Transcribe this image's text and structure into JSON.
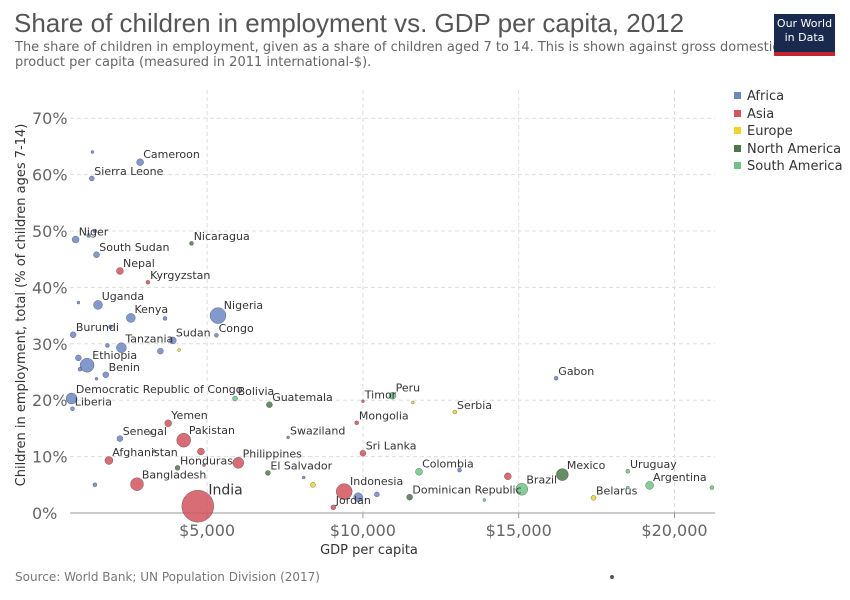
{
  "header": {
    "title": "Share of children in employment vs. GDP per capita, 2012",
    "subtitle": "The share of children in employment, given as a share of children aged 7 to 14. This is shown against gross domestic product per capita (measured in 2011 international-$).",
    "logo_line1": "Our World",
    "logo_line2": "in Data"
  },
  "footer": {
    "source": "Source: World Bank; UN Population Division (2017)"
  },
  "colors": {
    "Africa": "#6d87c5",
    "Asia": "#d1545e",
    "Europe": "#f0d330",
    "North America": "#4a7a4a",
    "South America": "#6dc486"
  },
  "chart_data": {
    "type": "scatter",
    "title": "Share of children in employment vs. GDP per capita, 2012",
    "xlabel": "GDP per capita",
    "ylabel": "Children in employment, total (% of children ages 7-14)",
    "xlim": [
      600,
      21300
    ],
    "ylim": [
      0,
      75
    ],
    "xticks": [
      5000,
      10000,
      15000,
      20000
    ],
    "xtick_labels": [
      "$5,000",
      "$10,000",
      "$15,000",
      "$20,000"
    ],
    "yticks": [
      0,
      10,
      20,
      30,
      40,
      50,
      60,
      70
    ],
    "ytick_labels": [
      "0%",
      "10%",
      "20%",
      "30%",
      "40%",
      "50%",
      "60%",
      "70%"
    ],
    "grid": true,
    "legend_position": "right",
    "legend": [
      "Africa",
      "Asia",
      "Europe",
      "North America",
      "South America"
    ],
    "points": [
      {
        "label": "Cameroon",
        "x": 2850,
        "y": 62.2,
        "region": "Africa",
        "r": 3.5
      },
      {
        "label": "",
        "x": 1320,
        "y": 64.0,
        "region": "Africa",
        "r": 1.5
      },
      {
        "label": "Sierra Leone",
        "x": 1300,
        "y": 59.3,
        "region": "Africa",
        "r": 2.5
      },
      {
        "label": "Niger",
        "x": 780,
        "y": 48.5,
        "region": "Africa",
        "r": 3.5
      },
      {
        "label": "",
        "x": 1200,
        "y": 49.2,
        "region": "Africa",
        "r": 2
      },
      {
        "label": "",
        "x": 1400,
        "y": 50.0,
        "region": "Africa",
        "r": 2
      },
      {
        "label": "Nicaragua",
        "x": 4500,
        "y": 47.8,
        "region": "North America",
        "r": 2
      },
      {
        "label": "South Sudan",
        "x": 1450,
        "y": 45.8,
        "region": "Africa",
        "r": 3
      },
      {
        "label": "Nepal",
        "x": 2200,
        "y": 42.9,
        "region": "Asia",
        "r": 3.5
      },
      {
        "label": "Kyrgyzstan",
        "x": 3100,
        "y": 40.9,
        "region": "Asia",
        "r": 2
      },
      {
        "label": "Uganda",
        "x": 1500,
        "y": 36.9,
        "region": "Africa",
        "r": 4.5
      },
      {
        "label": "",
        "x": 870,
        "y": 37.3,
        "region": "Africa",
        "r": 1.5
      },
      {
        "label": "Kenya",
        "x": 2550,
        "y": 34.6,
        "region": "Africa",
        "r": 4.5
      },
      {
        "label": "",
        "x": 3650,
        "y": 34.5,
        "region": "Africa",
        "r": 2
      },
      {
        "label": "Nigeria",
        "x": 5350,
        "y": 35.0,
        "region": "Africa",
        "r": 8
      },
      {
        "label": "",
        "x": 1900,
        "y": 33.0,
        "region": "Africa",
        "r": 2
      },
      {
        "label": "Burundi",
        "x": 700,
        "y": 31.6,
        "region": "Africa",
        "r": 3
      },
      {
        "label": "Congo",
        "x": 5300,
        "y": 31.5,
        "region": "Africa",
        "r": 2
      },
      {
        "label": "Sudan",
        "x": 3900,
        "y": 30.6,
        "region": "Africa",
        "r": 3.5
      },
      {
        "label": "Tanzania",
        "x": 2250,
        "y": 29.3,
        "region": "Africa",
        "r": 5
      },
      {
        "label": "",
        "x": 1800,
        "y": 29.7,
        "region": "Africa",
        "r": 2
      },
      {
        "label": "",
        "x": 3500,
        "y": 28.7,
        "region": "Africa",
        "r": 3
      },
      {
        "label": "",
        "x": 4100,
        "y": 28.9,
        "region": "Europe",
        "r": 1.5
      },
      {
        "label": "Ethiopia",
        "x": 1150,
        "y": 26.2,
        "region": "Africa",
        "r": 7
      },
      {
        "label": "",
        "x": 870,
        "y": 27.5,
        "region": "Africa",
        "r": 3
      },
      {
        "label": "",
        "x": 920,
        "y": 25.5,
        "region": "Africa",
        "r": 2
      },
      {
        "label": "Benin",
        "x": 1750,
        "y": 24.5,
        "region": "Africa",
        "r": 3
      },
      {
        "label": "",
        "x": 1450,
        "y": 23.8,
        "region": "Africa",
        "r": 1.5
      },
      {
        "label": "Gabon",
        "x": 16200,
        "y": 23.9,
        "region": "Africa",
        "r": 2
      },
      {
        "label": "Democratic Republic of Congo",
        "x": 650,
        "y": 20.3,
        "region": "Africa",
        "r": 5.5
      },
      {
        "label": "Bolivia",
        "x": 5900,
        "y": 20.3,
        "region": "South America",
        "r": 2.5
      },
      {
        "label": "Guatemala",
        "x": 7000,
        "y": 19.2,
        "region": "North America",
        "r": 3
      },
      {
        "label": "Timor",
        "x": 10000,
        "y": 19.8,
        "region": "Asia",
        "r": 1.5
      },
      {
        "label": "Peru",
        "x": 10950,
        "y": 20.8,
        "region": "South America",
        "r": 3.5
      },
      {
        "label": "",
        "x": 11600,
        "y": 19.6,
        "region": "Europe",
        "r": 1.5
      },
      {
        "label": "Liberia",
        "x": 680,
        "y": 18.5,
        "region": "Africa",
        "r": 2
      },
      {
        "label": "Serbia",
        "x": 12950,
        "y": 17.9,
        "region": "Europe",
        "r": 2
      },
      {
        "label": "Mongolia",
        "x": 9800,
        "y": 16.0,
        "region": "Asia",
        "r": 2
      },
      {
        "label": "Yemen",
        "x": 3750,
        "y": 15.9,
        "region": "Asia",
        "r": 3.5
      },
      {
        "label": "Senegal",
        "x": 2200,
        "y": 13.2,
        "region": "Africa",
        "r": 3
      },
      {
        "label": "",
        "x": 3200,
        "y": 14.2,
        "region": "Africa",
        "r": 1.5
      },
      {
        "label": "Pakistan",
        "x": 4250,
        "y": 12.9,
        "region": "Asia",
        "r": 7
      },
      {
        "label": "Swaziland",
        "x": 7600,
        "y": 13.4,
        "region": "Africa",
        "r": 1.5
      },
      {
        "label": "Sri Lanka",
        "x": 10000,
        "y": 10.6,
        "region": "Asia",
        "r": 3
      },
      {
        "label": "Afghanistan",
        "x": 1850,
        "y": 9.3,
        "region": "Asia",
        "r": 4
      },
      {
        "label": "",
        "x": 4800,
        "y": 10.9,
        "region": "Asia",
        "r": 3.5
      },
      {
        "label": "Philippines",
        "x": 6000,
        "y": 8.9,
        "region": "Asia",
        "r": 5.5
      },
      {
        "label": "",
        "x": 3300,
        "y": 11.0,
        "region": "Africa",
        "r": 1.5
      },
      {
        "label": "Honduras",
        "x": 4050,
        "y": 8.0,
        "region": "North America",
        "r": 2.5
      },
      {
        "label": "",
        "x": 4900,
        "y": 8.5,
        "region": "Asia",
        "r": 1.5
      },
      {
        "label": "El Salvador",
        "x": 6950,
        "y": 7.1,
        "region": "North America",
        "r": 2.5
      },
      {
        "label": "Colombia",
        "x": 11800,
        "y": 7.3,
        "region": "South America",
        "r": 3.5
      },
      {
        "label": "",
        "x": 13100,
        "y": 7.6,
        "region": "Africa",
        "r": 2
      },
      {
        "label": "",
        "x": 8100,
        "y": 6.3,
        "region": "Africa",
        "r": 1.5
      },
      {
        "label": "Mexico",
        "x": 16400,
        "y": 6.8,
        "region": "North America",
        "r": 6
      },
      {
        "label": "",
        "x": 14650,
        "y": 6.5,
        "region": "Asia",
        "r": 3.5
      },
      {
        "label": "Uruguay",
        "x": 18500,
        "y": 7.4,
        "region": "South America",
        "r": 2
      },
      {
        "label": "Bangladesh",
        "x": 2750,
        "y": 5.1,
        "region": "Asia",
        "r": 6.5
      },
      {
        "label": "",
        "x": 1400,
        "y": 5.0,
        "region": "Africa",
        "r": 2
      },
      {
        "label": "",
        "x": 8400,
        "y": 5.0,
        "region": "Europe",
        "r": 2.5
      },
      {
        "label": "Indonesia",
        "x": 9400,
        "y": 3.8,
        "region": "Asia",
        "r": 8
      },
      {
        "label": "Brazil",
        "x": 15100,
        "y": 4.2,
        "region": "South America",
        "r": 6
      },
      {
        "label": "Argentina",
        "x": 19200,
        "y": 4.9,
        "region": "South America",
        "r": 4
      },
      {
        "label": "",
        "x": 21200,
        "y": 4.5,
        "region": "South America",
        "r": 2
      },
      {
        "label": "",
        "x": 18500,
        "y": 4.5,
        "region": "South America",
        "r": 1.5
      },
      {
        "label": "Dominican Republic",
        "x": 11500,
        "y": 2.8,
        "region": "North America",
        "r": 3
      },
      {
        "label": "",
        "x": 13900,
        "y": 2.3,
        "region": "South America",
        "r": 1.5
      },
      {
        "label": "",
        "x": 10450,
        "y": 3.3,
        "region": "Africa",
        "r": 2.5
      },
      {
        "label": "Belarus",
        "x": 17400,
        "y": 2.7,
        "region": "Europe",
        "r": 2.5
      },
      {
        "label": "India",
        "x": 4700,
        "y": 1.2,
        "region": "Asia",
        "r": 16
      },
      {
        "label": "",
        "x": 9850,
        "y": 2.8,
        "region": "Africa",
        "r": 4.5
      },
      {
        "label": "Jordan",
        "x": 9050,
        "y": 1.0,
        "region": "Asia",
        "r": 2.5
      }
    ]
  }
}
